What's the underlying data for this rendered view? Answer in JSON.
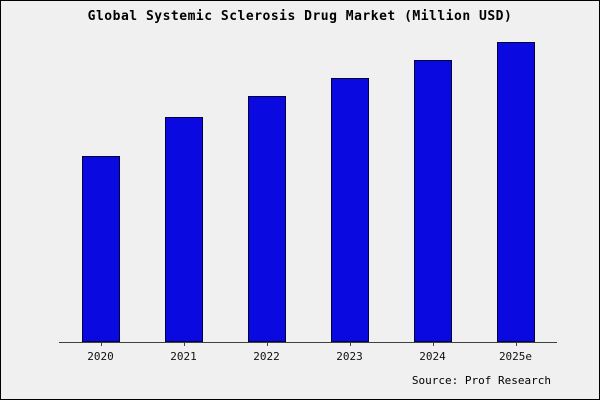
{
  "title": "Global Systemic Sclerosis Drug Market (Million USD)",
  "source": "Source: Prof Research",
  "colors": {
    "bar_fill": "#0a0ae0",
    "bar_border": "#000040",
    "background": "#f0f0f0",
    "axis": "#404040"
  },
  "chart_data": {
    "type": "bar",
    "title": "Global Systemic Sclerosis Drug Market (Million USD)",
    "categories": [
      "2020",
      "2021",
      "2022",
      "2023",
      "2024",
      "2025e"
    ],
    "values": [
      62,
      75,
      82,
      88,
      94,
      100
    ],
    "xlabel": "",
    "ylabel": "",
    "ylim": [
      0,
      100
    ],
    "grid": false,
    "legend": false,
    "units": "Million USD",
    "source": "Prof Research"
  }
}
